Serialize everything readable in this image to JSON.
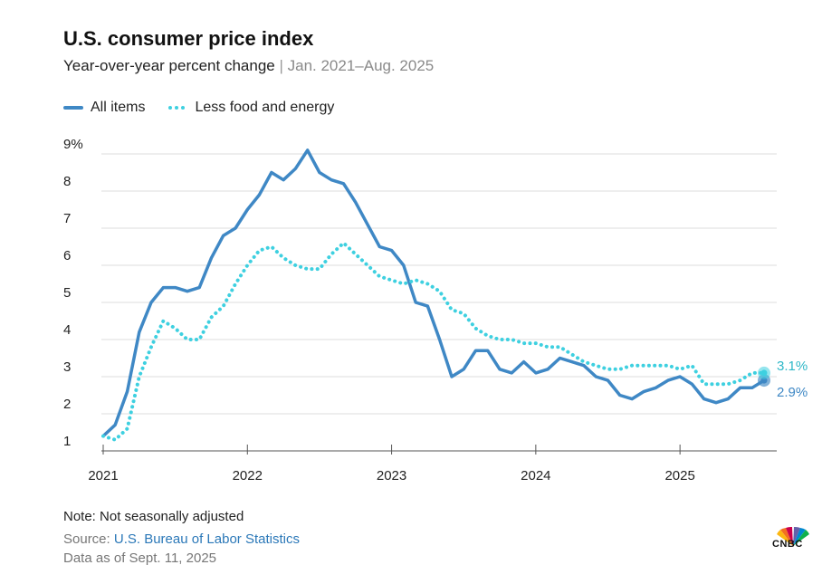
{
  "header": {
    "title": "U.S. consumer price index",
    "subtitle_main": "Year-over-year percent change",
    "subtitle_sep": " | ",
    "subtitle_range": "Jan. 2021–Aug. 2025"
  },
  "legend": {
    "all_items": "All items",
    "core": "Less food and energy"
  },
  "colors": {
    "all_items": "#3f88c5",
    "core": "#3ed0e0",
    "grid": "#dcdcdc",
    "end_label_core": "#2fb8c8",
    "end_label_all": "#3f88c5"
  },
  "chart_data": {
    "type": "line",
    "title": "U.S. consumer price index",
    "xlabel": "",
    "ylabel": "Year-over-year percent change",
    "ylim": [
      1,
      9
    ],
    "xlim": [
      2021.0,
      2025.583
    ],
    "x_ticks": [
      {
        "value": 2021,
        "label": "2021"
      },
      {
        "value": 2022,
        "label": "2022"
      },
      {
        "value": 2023,
        "label": "2023"
      },
      {
        "value": 2024,
        "label": "2024"
      },
      {
        "value": 2025,
        "label": "2025"
      }
    ],
    "y_ticks": [
      {
        "value": 1,
        "label": "1"
      },
      {
        "value": 2,
        "label": "2"
      },
      {
        "value": 3,
        "label": "3"
      },
      {
        "value": 4,
        "label": "4"
      },
      {
        "value": 5,
        "label": "5"
      },
      {
        "value": 6,
        "label": "6"
      },
      {
        "value": 7,
        "label": "7"
      },
      {
        "value": 8,
        "label": "8"
      },
      {
        "value": 9,
        "label": "9%"
      }
    ],
    "grid": true,
    "series": [
      {
        "name": "All items",
        "style": "solid",
        "end_label": "2.9%",
        "points": [
          [
            2021.0,
            1.4
          ],
          [
            2021.083,
            1.7
          ],
          [
            2021.167,
            2.6
          ],
          [
            2021.25,
            4.2
          ],
          [
            2021.333,
            5.0
          ],
          [
            2021.417,
            5.4
          ],
          [
            2021.5,
            5.4
          ],
          [
            2021.583,
            5.3
          ],
          [
            2021.667,
            5.4
          ],
          [
            2021.75,
            6.2
          ],
          [
            2021.833,
            6.8
          ],
          [
            2021.917,
            7.0
          ],
          [
            2022.0,
            7.5
          ],
          [
            2022.083,
            7.9
          ],
          [
            2022.167,
            8.5
          ],
          [
            2022.25,
            8.3
          ],
          [
            2022.333,
            8.6
          ],
          [
            2022.417,
            9.1
          ],
          [
            2022.5,
            8.5
          ],
          [
            2022.583,
            8.3
          ],
          [
            2022.667,
            8.2
          ],
          [
            2022.75,
            7.7
          ],
          [
            2022.833,
            7.1
          ],
          [
            2022.917,
            6.5
          ],
          [
            2023.0,
            6.4
          ],
          [
            2023.083,
            6.0
          ],
          [
            2023.167,
            5.0
          ],
          [
            2023.25,
            4.9
          ],
          [
            2023.333,
            4.0
          ],
          [
            2023.417,
            3.0
          ],
          [
            2023.5,
            3.2
          ],
          [
            2023.583,
            3.7
          ],
          [
            2023.667,
            3.7
          ],
          [
            2023.75,
            3.2
          ],
          [
            2023.833,
            3.1
          ],
          [
            2023.917,
            3.4
          ],
          [
            2024.0,
            3.1
          ],
          [
            2024.083,
            3.2
          ],
          [
            2024.167,
            3.5
          ],
          [
            2024.25,
            3.4
          ],
          [
            2024.333,
            3.3
          ],
          [
            2024.417,
            3.0
          ],
          [
            2024.5,
            2.9
          ],
          [
            2024.583,
            2.5
          ],
          [
            2024.667,
            2.4
          ],
          [
            2024.75,
            2.6
          ],
          [
            2024.833,
            2.7
          ],
          [
            2024.917,
            2.9
          ],
          [
            2025.0,
            3.0
          ],
          [
            2025.083,
            2.8
          ],
          [
            2025.167,
            2.4
          ],
          [
            2025.25,
            2.3
          ],
          [
            2025.333,
            2.4
          ],
          [
            2025.417,
            2.7
          ],
          [
            2025.5,
            2.7
          ],
          [
            2025.583,
            2.9
          ]
        ]
      },
      {
        "name": "Less food and energy",
        "style": "dotted",
        "end_label": "3.1%",
        "points": [
          [
            2021.0,
            1.4
          ],
          [
            2021.083,
            1.3
          ],
          [
            2021.167,
            1.6
          ],
          [
            2021.25,
            3.0
          ],
          [
            2021.333,
            3.8
          ],
          [
            2021.417,
            4.5
          ],
          [
            2021.5,
            4.3
          ],
          [
            2021.583,
            4.0
          ],
          [
            2021.667,
            4.0
          ],
          [
            2021.75,
            4.6
          ],
          [
            2021.833,
            4.9
          ],
          [
            2021.917,
            5.5
          ],
          [
            2022.0,
            6.0
          ],
          [
            2022.083,
            6.4
          ],
          [
            2022.167,
            6.5
          ],
          [
            2022.25,
            6.2
          ],
          [
            2022.333,
            6.0
          ],
          [
            2022.417,
            5.9
          ],
          [
            2022.5,
            5.9
          ],
          [
            2022.583,
            6.3
          ],
          [
            2022.667,
            6.6
          ],
          [
            2022.75,
            6.3
          ],
          [
            2022.833,
            6.0
          ],
          [
            2022.917,
            5.7
          ],
          [
            2023.0,
            5.6
          ],
          [
            2023.083,
            5.5
          ],
          [
            2023.167,
            5.6
          ],
          [
            2023.25,
            5.5
          ],
          [
            2023.333,
            5.3
          ],
          [
            2023.417,
            4.8
          ],
          [
            2023.5,
            4.7
          ],
          [
            2023.583,
            4.3
          ],
          [
            2023.667,
            4.1
          ],
          [
            2023.75,
            4.0
          ],
          [
            2023.833,
            4.0
          ],
          [
            2023.917,
            3.9
          ],
          [
            2024.0,
            3.9
          ],
          [
            2024.083,
            3.8
          ],
          [
            2024.167,
            3.8
          ],
          [
            2024.25,
            3.6
          ],
          [
            2024.333,
            3.4
          ],
          [
            2024.417,
            3.3
          ],
          [
            2024.5,
            3.2
          ],
          [
            2024.583,
            3.2
          ],
          [
            2024.667,
            3.3
          ],
          [
            2024.75,
            3.3
          ],
          [
            2024.833,
            3.3
          ],
          [
            2024.917,
            3.3
          ],
          [
            2025.0,
            3.2
          ],
          [
            2025.083,
            3.3
          ],
          [
            2025.167,
            2.8
          ],
          [
            2025.25,
            2.8
          ],
          [
            2025.333,
            2.8
          ],
          [
            2025.417,
            2.9
          ],
          [
            2025.5,
            3.1
          ],
          [
            2025.583,
            3.1
          ]
        ]
      }
    ]
  },
  "footer": {
    "note": "Note: Not seasonally adjusted",
    "source_prefix": "Source: ",
    "source_link": "U.S. Bureau of Labor Statistics",
    "data_as_of": "Data as of Sept. 11, 2025",
    "logo_text": "CNBC"
  }
}
